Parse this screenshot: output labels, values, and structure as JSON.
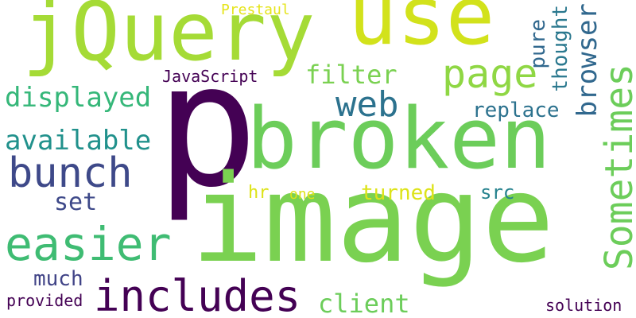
{
  "words": {
    "p": {
      "text": "p",
      "color": "#440154"
    },
    "image": {
      "text": "image",
      "color": "#7ad151"
    },
    "broken": {
      "text": "broken",
      "color": "#6ccd5a"
    },
    "jquery": {
      "text": "jQuery",
      "color": "#a5db36"
    },
    "use": {
      "text": "use",
      "color": "#d2e21b"
    },
    "includes": {
      "text": "includes",
      "color": "#440154"
    },
    "easier": {
      "text": "easier",
      "color": "#3fbc73"
    },
    "sometimes": {
      "text": "Sometimes",
      "color": "#6ccd5a"
    },
    "bunch": {
      "text": "bunch",
      "color": "#3e4989"
    },
    "web": {
      "text": "web",
      "color": "#2c728e"
    },
    "page": {
      "text": "page",
      "color": "#8fd744"
    },
    "displayed": {
      "text": "displayed",
      "color": "#35b779"
    },
    "available": {
      "text": "available",
      "color": "#21918c"
    },
    "filter": {
      "text": "filter",
      "color": "#7ad151"
    },
    "browser": {
      "text": "browser",
      "color": "#31688e"
    },
    "client": {
      "text": "client",
      "color": "#6ccd5a"
    },
    "set": {
      "text": "set",
      "color": "#3e4989"
    },
    "much": {
      "text": "much",
      "color": "#414487"
    },
    "thought": {
      "text": "thought",
      "color": "#2a788e"
    },
    "pure": {
      "text": "pure",
      "color": "#31688e"
    },
    "replace": {
      "text": "replace",
      "color": "#2c728e"
    },
    "turned": {
      "text": "turned",
      "color": "#dde318"
    },
    "src": {
      "text": "src",
      "color": "#26828e"
    },
    "hr": {
      "text": "hr",
      "color": "#dde318"
    },
    "one": {
      "text": "one",
      "color": "#dde318"
    },
    "javascript": {
      "text": "JavaScript",
      "color": "#440154"
    },
    "prestaul": {
      "text": "Prestaul",
      "color": "#e5e419"
    },
    "provided": {
      "text": "provided",
      "color": "#440154"
    },
    "solution": {
      "text": "solution",
      "color": "#440154"
    }
  }
}
